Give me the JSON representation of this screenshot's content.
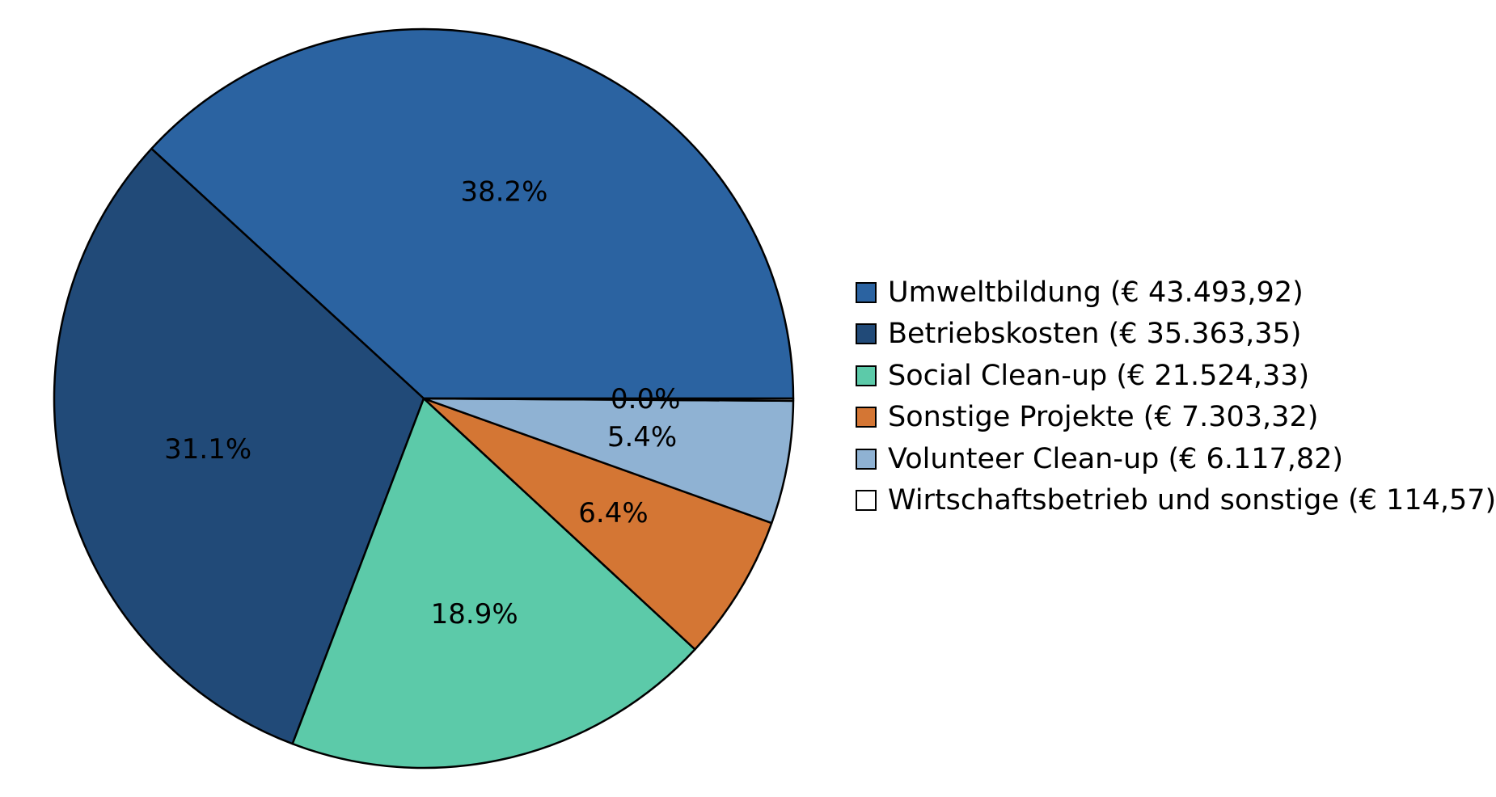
{
  "chart_data": {
    "type": "pie",
    "title": "",
    "legend_position": "right",
    "slices": [
      {
        "label": "Umweltbildung",
        "value": 43493.92,
        "legend_text": "Umweltbildung (€ 43.493,92)",
        "percent_label": "38.2%",
        "color": "#2b63a1"
      },
      {
        "label": "Betriebskosten",
        "value": 35363.35,
        "legend_text": "Betriebskosten (€ 35.363,35)",
        "percent_label": "31.1%",
        "color": "#214a78"
      },
      {
        "label": "Social Clean-up",
        "value": 21524.33,
        "legend_text": "Social Clean-up (€ 21.524,33)",
        "percent_label": "18.9%",
        "color": "#5ccaa9"
      },
      {
        "label": "Sonstige Projekte",
        "value": 7303.32,
        "legend_text": "Sonstige Projekte (€ 7.303,32)",
        "percent_label": "6.4%",
        "color": "#d47634"
      },
      {
        "label": "Volunteer Clean-up",
        "value": 6117.82,
        "legend_text": "Volunteer Clean-up (€ 6.117,82)",
        "percent_label": "5.4%",
        "color": "#8fb2d3"
      },
      {
        "label": "Wirtschaftsbetrieb und sonstige",
        "value": 114.57,
        "legend_text": "Wirtschaftsbetrieb und sonstige (€ 114,57)",
        "percent_label": "0.0%",
        "color": "#ffffff"
      }
    ]
  }
}
